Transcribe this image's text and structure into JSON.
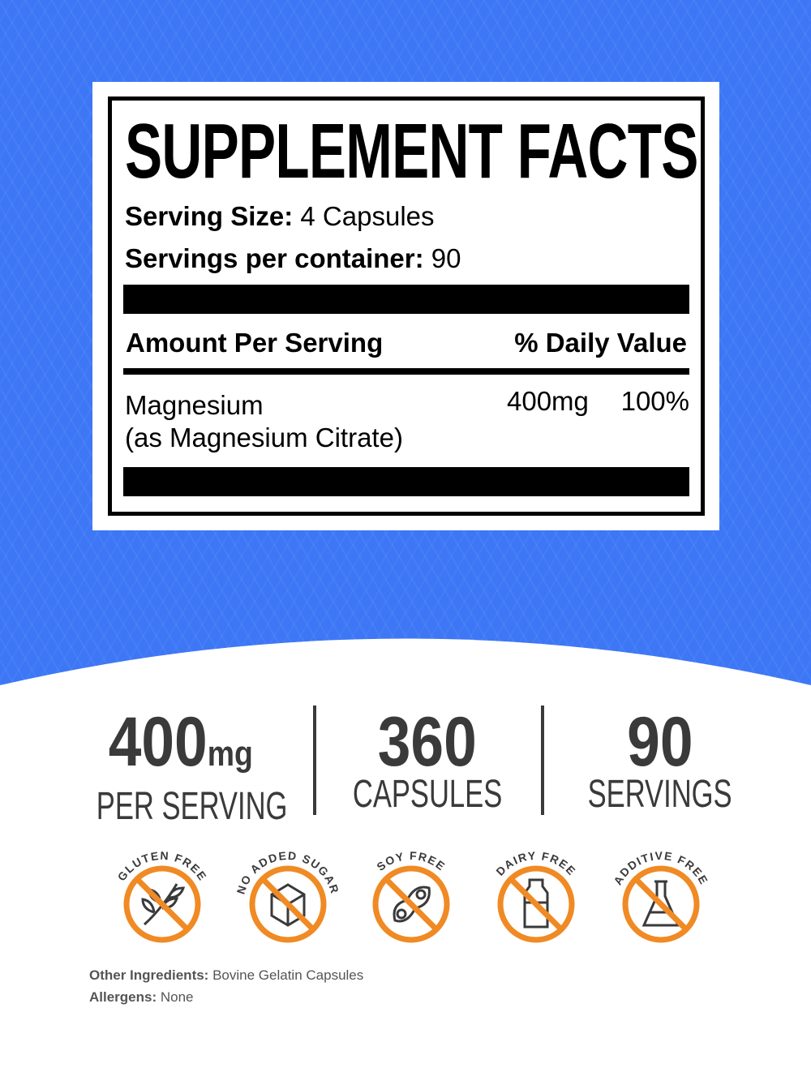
{
  "facts": {
    "title": "SUPPLEMENT FACTS",
    "serving_size_label": "Serving Size:",
    "serving_size_value": "4 Capsules",
    "servings_label": "Servings per container:",
    "servings_value": "90",
    "amount_header": "Amount Per Serving",
    "dv_header": "% Daily Value",
    "ingredient_name": "Magnesium",
    "ingredient_form": "(as Magnesium Citrate)",
    "ingredient_amount": "400mg",
    "ingredient_dv": "100%"
  },
  "stats": [
    {
      "value": "400",
      "unit": "mg",
      "label": "PER SERVING"
    },
    {
      "value": "360",
      "unit": "",
      "label": "CAPSULES"
    },
    {
      "value": "90",
      "unit": "",
      "label": "SERVINGS"
    }
  ],
  "badges": [
    {
      "label": "GLUTEN FREE",
      "icon": "wheat-icon"
    },
    {
      "label": "NO ADDED SUGAR",
      "icon": "sugar-cube-icon"
    },
    {
      "label": "SOY FREE",
      "icon": "soybean-icon"
    },
    {
      "label": "DAIRY FREE",
      "icon": "milk-bottle-icon"
    },
    {
      "label": "ADDITIVE FREE",
      "icon": "flask-icon"
    }
  ],
  "other_ingredients_label": "Other Ingredients:",
  "other_ingredients_value": "Bovine Gelatin Capsules",
  "allergens_label": "Allergens:",
  "allergens_value": "None",
  "colors": {
    "background_blue": "#3d77f5",
    "badge_orange": "#f08a24",
    "text_gray": "#3a3a3a"
  }
}
